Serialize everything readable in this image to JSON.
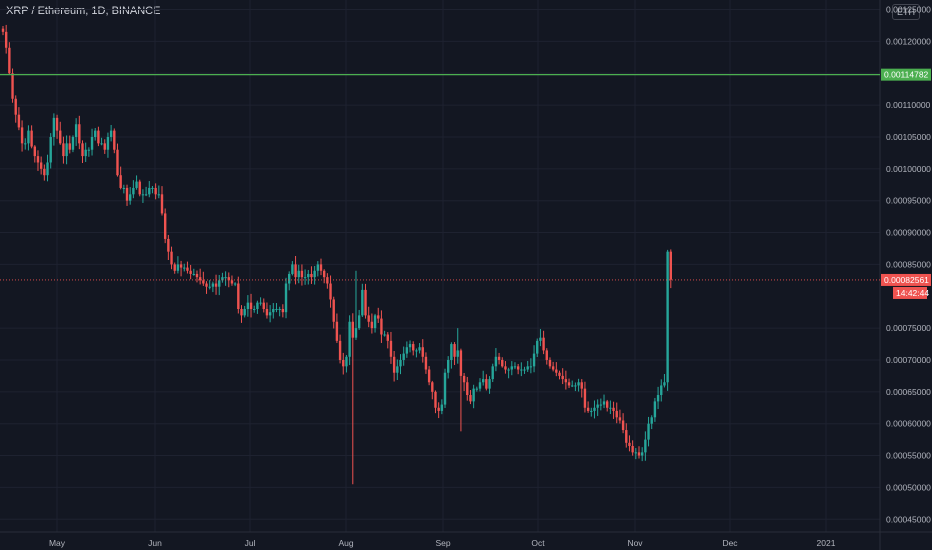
{
  "symbol": {
    "title": "XRP / Ethereum, 1D, BINANCE",
    "currency": "ETH"
  },
  "colors": {
    "background": "#131722",
    "up": "#26a69a",
    "down": "#ef5350",
    "resistance": "#4caf50",
    "axis_text": "#b2b5be"
  },
  "chart_data": {
    "type": "candlestick",
    "title": "XRP / Ethereum, 1D, BINANCE",
    "xlabel": "",
    "ylabel": "",
    "ylim": [
      0.00043,
      0.001265
    ],
    "y_ticks": [
      "0.00125000",
      "0.00120000",
      "0.00115000",
      "0.00110000",
      "0.00105000",
      "0.00100000",
      "0.00095000",
      "0.00090000",
      "0.00085000",
      "0.00075000",
      "0.00070000",
      "0.00065000",
      "0.00060000",
      "0.00055000",
      "0.00050000",
      "0.00045000"
    ],
    "x_ticks": [
      "May",
      "Jun",
      "Jul",
      "Aug",
      "Sep",
      "Oct",
      "Nov",
      "Dec",
      "2021"
    ],
    "grid": true,
    "horizontal_line": {
      "value": 0.00114782,
      "label": "0.00114782"
    },
    "last_price": {
      "value": 0.00082561,
      "label": "0.00082561",
      "countdown": "14:42:44"
    },
    "daily_closes": [
      0.001215,
      0.00119,
      0.00115,
      0.00111,
      0.001085,
      0.001065,
      0.00104,
      0.00104,
      0.00106,
      0.001035,
      0.00102,
      0.00101,
      0.001,
      0.00099,
      0.00101,
      0.00105,
      0.00108,
      0.00106,
      0.00104,
      0.00102,
      0.00104,
      0.00103,
      0.00105,
      0.00107,
      0.00104,
      0.00102,
      0.00103,
      0.00103,
      0.00105,
      0.00106,
      0.00104,
      0.00104,
      0.00103,
      0.00105,
      0.00106,
      0.00103,
      0.00099,
      0.00097,
      0.00097,
      0.00095,
      0.00096,
      0.00097,
      0.00098,
      0.00096,
      0.00096,
      0.00096,
      0.00097,
      0.00097,
      0.00096,
      0.00096,
      0.00093,
      0.00089,
      0.00087,
      0.00085,
      0.00084,
      0.00085,
      0.000845,
      0.000845,
      0.00084,
      0.000835,
      0.000835,
      0.00083,
      0.000825,
      0.00082,
      0.000815,
      0.000815,
      0.00082,
      0.000815,
      0.000825,
      0.00083,
      0.00083,
      0.000825,
      0.00082,
      0.00082,
      0.00078,
      0.00077,
      0.00078,
      0.00079,
      0.00078,
      0.00078,
      0.00079,
      0.00079,
      0.00078,
      0.00077,
      0.000775,
      0.00078,
      0.00078,
      0.00078,
      0.000775,
      0.00082,
      0.000835,
      0.00085,
      0.00083,
      0.00084,
      0.00083,
      0.00083,
      0.000835,
      0.00083,
      0.00084,
      0.00085,
      0.00084,
      0.00083,
      0.00082,
      0.000795,
      0.00076,
      0.00073,
      0.0007,
      0.00069,
      0.000705,
      0.00076,
      0.000735,
      0.00075,
      0.00077,
      0.00081,
      0.00077,
      0.00076,
      0.00075,
      0.00077,
      0.000765,
      0.00074,
      0.00074,
      0.00073,
      0.000705,
      0.00068,
      0.00069,
      0.0007,
      0.00071,
      0.00072,
      0.000725,
      0.000715,
      0.000715,
      0.00072,
      0.000705,
      0.000685,
      0.000665,
      0.00065,
      0.000625,
      0.00062,
      0.00063,
      0.00068,
      0.0007,
      0.000725,
      0.000705,
      0.000715,
      0.000675,
      0.000665,
      0.000645,
      0.000635,
      0.000655,
      0.000655,
      0.000665,
      0.00067,
      0.000655,
      0.00067,
      0.00069,
      0.000705,
      0.0007,
      0.00069,
      0.000685,
      0.000685,
      0.00069,
      0.00069,
      0.000685,
      0.000685,
      0.000685,
      0.00069,
      0.00069,
      0.00071,
      0.00073,
      0.000735,
      0.000715,
      0.0007,
      0.00069,
      0.000685,
      0.00068,
      0.000675,
      0.00067,
      0.000665,
      0.00066,
      0.00066,
      0.00066,
      0.000665,
      0.000655,
      0.000625,
      0.00062,
      0.00062,
      0.000625,
      0.00063,
      0.00063,
      0.000635,
      0.000625,
      0.000625,
      0.00062,
      0.00061,
      0.000605,
      0.00059,
      0.00057,
      0.000565,
      0.000555,
      0.000555,
      0.00055,
      0.000555,
      0.000575,
      0.0006,
      0.00061,
      0.000635,
      0.000645,
      0.00066,
      0.000665,
      0.00087,
      0.000826
    ]
  }
}
